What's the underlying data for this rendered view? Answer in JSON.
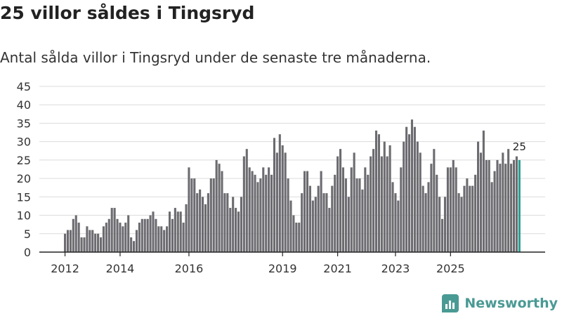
{
  "title": "25 villor såldes i Tingsryd",
  "subtitle": "Antal sålda villor i Tingsryd under de senaste tre månaderna.",
  "brand": "Newsworthy",
  "colors": {
    "bar": "#6c6b70",
    "highlight": "#2a9d8f",
    "brand": "#4a9a94"
  },
  "chart_data": {
    "type": "bar",
    "title": "25 villor såldes i Tingsryd",
    "xlabel": "",
    "ylabel": "",
    "ylim": [
      0,
      45
    ],
    "yticks": [
      0,
      5,
      10,
      15,
      20,
      25,
      30,
      35,
      40,
      45
    ],
    "grid": true,
    "x_tick_labels": [
      {
        "label": "2012",
        "index": 0
      },
      {
        "label": "2014",
        "index": 20
      },
      {
        "label": "2016",
        "index": 45
      },
      {
        "label": "2019",
        "index": 79
      },
      {
        "label": "2021",
        "index": 99
      },
      {
        "label": "2023",
        "index": 120
      },
      {
        "label": "2025",
        "index": 140
      }
    ],
    "values": [
      5,
      6,
      6,
      9,
      10,
      8,
      4,
      4,
      7,
      6,
      6,
      5,
      5,
      4,
      7,
      8,
      9,
      12,
      12,
      9,
      8,
      7,
      8,
      10,
      4,
      3,
      6,
      8,
      9,
      9,
      9,
      10,
      11,
      9,
      7,
      7,
      6,
      7,
      11,
      9,
      12,
      11,
      11,
      8,
      13,
      23,
      20,
      20,
      16,
      17,
      15,
      13,
      16,
      20,
      20,
      25,
      24,
      22,
      16,
      16,
      12,
      15,
      12,
      11,
      15,
      26,
      28,
      23,
      22,
      21,
      19,
      20,
      23,
      21,
      23,
      21,
      31,
      27,
      32,
      29,
      27,
      20,
      14,
      10,
      8,
      8,
      16,
      22,
      22,
      18,
      14,
      15,
      18,
      22,
      16,
      16,
      12,
      18,
      21,
      26,
      28,
      23,
      20,
      15,
      23,
      27,
      20,
      20,
      17,
      23,
      21,
      26,
      28,
      33,
      32,
      26,
      30,
      26,
      29,
      19,
      16,
      14,
      23,
      30,
      34,
      32,
      36,
      34,
      30,
      27,
      18,
      16,
      19,
      24,
      28,
      21,
      15,
      9,
      15,
      23,
      23,
      25,
      23,
      16,
      15,
      18,
      20,
      18,
      18,
      21,
      30,
      27,
      33,
      25,
      25,
      19,
      22,
      25,
      24,
      27,
      24,
      28,
      24,
      25,
      26,
      25
    ],
    "highlight_last": true,
    "annotation": {
      "label": "25",
      "index": 165
    }
  }
}
